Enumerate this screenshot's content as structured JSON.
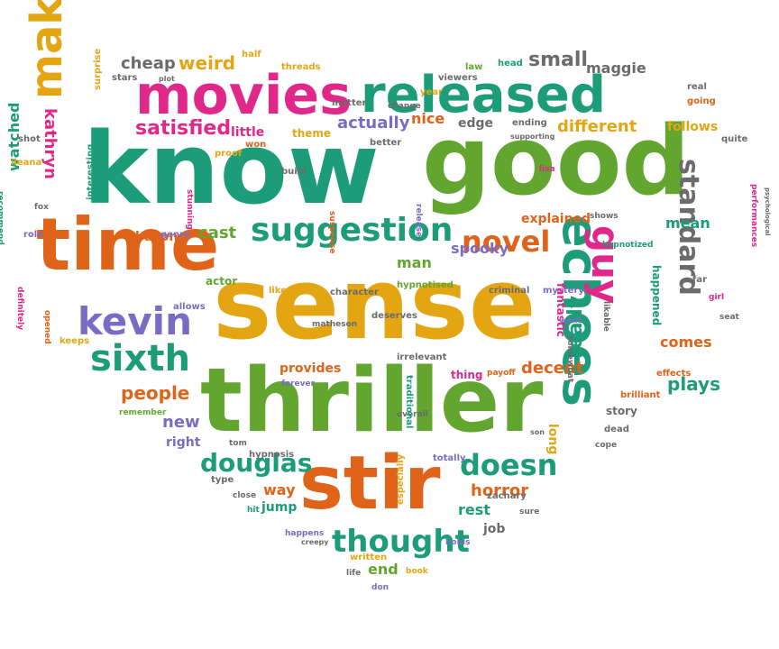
{
  "palette": {
    "teal": "#1c9c78",
    "green": "#62a630",
    "orange": "#e0631a",
    "gold": "#e3a612",
    "magenta": "#e0288a",
    "purple": "#7a6cc4",
    "gray": "#6b6b6b"
  },
  "words": [
    "know",
    "good",
    "sense",
    "thriller",
    "stir",
    "time",
    "movies",
    "released",
    "echoes",
    "make",
    "suggestion",
    "kevin",
    "sixth",
    "novel",
    "guy",
    "douglas",
    "thought",
    "doesn",
    "standard",
    "small",
    "satisfied",
    "weird",
    "cheap",
    "actually",
    "different",
    "people",
    "really",
    "plays",
    "decent",
    "horror",
    "provides",
    "comes",
    "explained",
    "mean",
    "spooky",
    "new",
    "right",
    "nice",
    "follows",
    "edge",
    "end",
    "way",
    "jump",
    "rest",
    "job",
    "cast",
    "bacon",
    "man",
    "story",
    "long",
    "watched",
    "kathryn",
    "maggie",
    "threads",
    "half",
    "stars",
    "surprise",
    "plot",
    "matter",
    "little",
    "theme",
    "proof",
    "won",
    "build",
    "stunning",
    "genre",
    "actor",
    "allows",
    "liked",
    "character",
    "hypnotised",
    "criminal",
    "mystery",
    "fantastic",
    "likable",
    "happened",
    "far",
    "girl",
    "seat",
    "effects",
    "brilliant",
    "dead",
    "cope",
    "son",
    "totally",
    "overall",
    "tom",
    "hypnosis",
    "zachary",
    "sure",
    "especially",
    "holds",
    "written",
    "book",
    "life",
    "don",
    "creepy",
    "happens",
    "close",
    "hit",
    "type",
    "remember",
    "forever",
    "irrelevant",
    "thing",
    "payoff",
    "somewhat",
    "went",
    "traditional",
    "matheson",
    "keeps",
    "opened",
    "definitely",
    "role",
    "ileana",
    "recommend",
    "fox",
    "shot",
    "interesting",
    "real",
    "going",
    "quite",
    "performances",
    "psychological",
    "hypnotized",
    "shows",
    "lisa",
    "release",
    "suspense",
    "deserves",
    "better",
    "supporting",
    "ending",
    "change",
    "year",
    "viewers",
    "law",
    "head"
  ]
}
